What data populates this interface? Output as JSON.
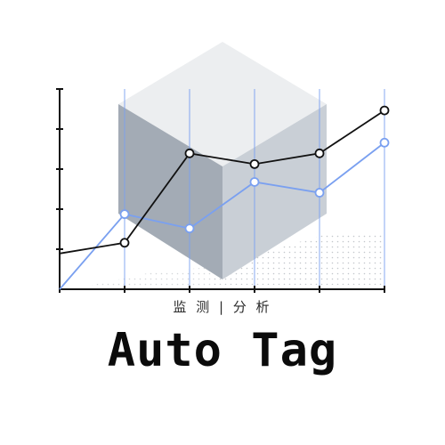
{
  "logo": {
    "tagline": "监 测 | 分 析",
    "brand_name": "Auto Tag",
    "icon": "cube-line-chart-icon",
    "colors": {
      "cube_top": "#eceef0",
      "cube_left": "#a3abb5",
      "cube_right": "#c9cfd6",
      "dark_line": "#111111",
      "blue_line": "#7aa0f0",
      "axis": "#111111"
    }
  },
  "chart_data": {
    "type": "line",
    "title": "",
    "xlabel": "",
    "ylabel": "",
    "x": [
      0,
      1,
      2,
      3,
      4,
      5
    ],
    "ylim": [
      0,
      5.6
    ],
    "series": [
      {
        "values": [
          1.0,
          1.3,
          3.8,
          3.5,
          3.8,
          5.0
        ],
        "color": "#111111",
        "markers": [
          false,
          true,
          true,
          true,
          true,
          true
        ]
      },
      {
        "values": [
          0.0,
          2.1,
          1.7,
          3.0,
          2.7,
          4.1
        ],
        "color": "#7aa0f0",
        "markers": [
          false,
          true,
          true,
          true,
          true,
          true
        ]
      }
    ],
    "grid": true
  }
}
